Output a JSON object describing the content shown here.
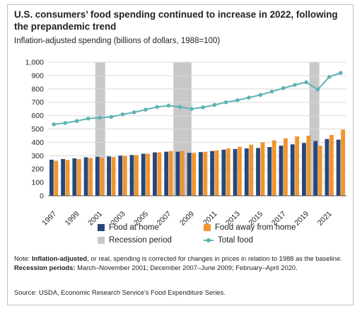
{
  "chart_data": {
    "type": "bar",
    "title": "U.S. consumers’ food spending continued to increase in 2022, following the prepandemic trend",
    "subtitle": "Inflation-adjusted spending (billions of dollars, 1988=100)",
    "x": [
      1997,
      1998,
      1999,
      2000,
      2001,
      2002,
      2003,
      2004,
      2005,
      2006,
      2007,
      2008,
      2009,
      2010,
      2011,
      2012,
      2013,
      2014,
      2015,
      2016,
      2017,
      2018,
      2019,
      2020,
      2021,
      2022
    ],
    "x_tick_labels": [
      "1997",
      "1999",
      "2001",
      "2003",
      "2005",
      "2007",
      "2009",
      "2011",
      "2013",
      "2015",
      "2017",
      "2019",
      "2021"
    ],
    "y_tick_labels": [
      "0",
      "100",
      "200",
      "300",
      "400",
      "500",
      "600",
      "700",
      "800",
      "900",
      "1,000"
    ],
    "ylim": [
      0,
      1000
    ],
    "series": [
      {
        "name": "Food at home",
        "type": "bar",
        "color": "#26477a",
        "values": [
          270,
          275,
          280,
          288,
          292,
          295,
          300,
          305,
          315,
          325,
          330,
          330,
          322,
          327,
          335,
          345,
          350,
          355,
          358,
          365,
          375,
          385,
          395,
          410,
          425,
          420
        ]
      },
      {
        "name": "Food away from home",
        "type": "bar",
        "color": "#f0952f",
        "values": [
          262,
          268,
          275,
          283,
          285,
          290,
          298,
          305,
          315,
          325,
          335,
          335,
          322,
          330,
          340,
          355,
          367,
          383,
          400,
          415,
          430,
          445,
          450,
          375,
          455,
          495
        ]
      },
      {
        "name": "Total food",
        "type": "line",
        "color": "#5fb3b3",
        "values": [
          535,
          545,
          560,
          578,
          585,
          590,
          610,
          625,
          645,
          665,
          675,
          665,
          650,
          662,
          680,
          700,
          715,
          735,
          755,
          780,
          805,
          830,
          850,
          795,
          890,
          920
        ]
      }
    ],
    "recession_periods": [
      [
        2001.17,
        2001.92
      ],
      [
        2007.92,
        2009.5
      ],
      [
        2020.08,
        2020.33
      ]
    ],
    "recession_label": "Recession period",
    "legend_placement": "bottom",
    "grid": "horizontal"
  },
  "colors": {
    "recession": "#c8c8c8",
    "grid": "#d9d9d9"
  },
  "note": {
    "prefix": "Note: ",
    "bold1": "Inflation-adjusted",
    "text1": ", or real, spending is corrected for changes in prices in relation to 1988 as the baseline. ",
    "bold2": "Recession periods:",
    "text2": " March–November 2001; December 2007–June 2009; February–April 2020."
  },
  "source": "Source: USDA, Economic Research Service’s Food Expenditure Series."
}
